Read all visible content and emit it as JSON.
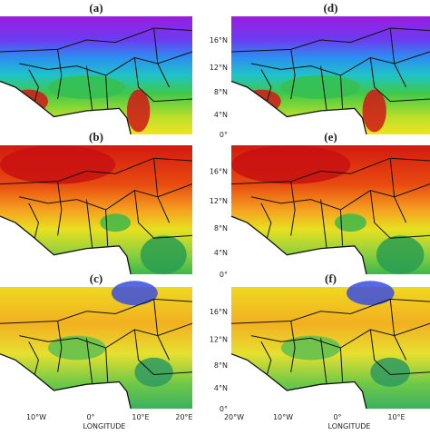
{
  "panels": [
    {
      "label": "(a)"
    },
    {
      "label": "(b)"
    },
    {
      "label": "(c)"
    },
    {
      "label": "(d)"
    },
    {
      "label": "(e)"
    },
    {
      "label": "(f)"
    }
  ],
  "axes": {
    "lat_ticks": [
      "16°N",
      "12°N",
      "8°N",
      "4°N",
      "0°"
    ],
    "left_lon_ticks": [
      "10°W",
      "0°",
      "10°E",
      "20°E"
    ],
    "right_lon_ticks": [
      "20°W",
      "10°W",
      "0°",
      "10°E"
    ],
    "lon_title": "LONGITUDE"
  }
}
